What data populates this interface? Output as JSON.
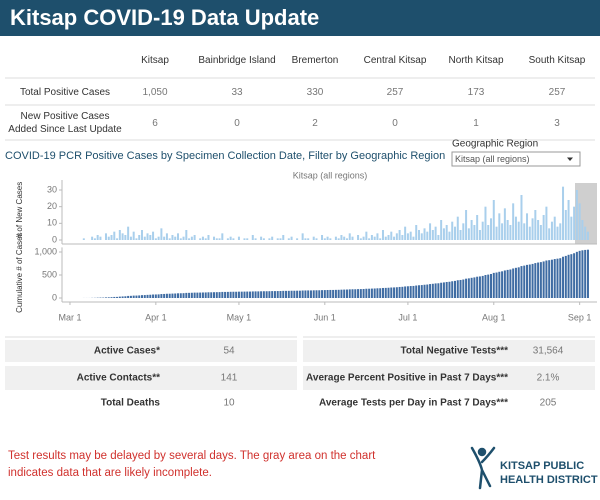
{
  "header": {
    "title": "Kitsap COVID-19 Data Update"
  },
  "table": {
    "columns": [
      "Kitsap",
      "Bainbridge Island",
      "Bremerton",
      "Central Kitsap",
      "North Kitsap",
      "South Kitsap"
    ],
    "rows": [
      {
        "label": "Total Positive Cases",
        "cells": [
          "1,050",
          33,
          330,
          257,
          173,
          257
        ]
      },
      {
        "label": "New Positive Cases Added Since Last Update",
        "cells": [
          6,
          0,
          2,
          0,
          1,
          3
        ]
      }
    ]
  },
  "chart_section": {
    "title": "COVID-19 PCR Positive Cases by Specimen Collection Date, Filter by Geographic Region",
    "filter_label": "Geographic Region",
    "filter_value": "Kitsap (all regions)"
  },
  "chart_data": [
    {
      "type": "bar",
      "title": "Kitsap (all regions)",
      "y_label": "# of New Cases",
      "color": "#a9cfec",
      "ylim": [
        0,
        36
      ],
      "yticks": [
        0,
        10,
        20,
        30
      ],
      "values": [
        0,
        0,
        0,
        0,
        0,
        0,
        1,
        0,
        0,
        2,
        1,
        3,
        2,
        0,
        4,
        2,
        3,
        5,
        1,
        6,
        4,
        3,
        8,
        2,
        5,
        1,
        3,
        6,
        2,
        4,
        3,
        5,
        1,
        2,
        7,
        2,
        4,
        1,
        3,
        2,
        4,
        1,
        2,
        6,
        1,
        2,
        3,
        0,
        1,
        2,
        1,
        3,
        0,
        2,
        1,
        1,
        4,
        0,
        1,
        2,
        1,
        0,
        2,
        0,
        1,
        1,
        0,
        3,
        1,
        0,
        2,
        1,
        0,
        1,
        2,
        0,
        1,
        1,
        3,
        0,
        1,
        2,
        0,
        1,
        0,
        4,
        1,
        1,
        0,
        2,
        1,
        0,
        3,
        1,
        2,
        1,
        0,
        2,
        1,
        3,
        2,
        1,
        4,
        2,
        0,
        3,
        1,
        2,
        5,
        1,
        3,
        2,
        4,
        1,
        6,
        2,
        3,
        5,
        2,
        4,
        6,
        3,
        8,
        4,
        5,
        2,
        9,
        6,
        4,
        7,
        5,
        10,
        6,
        8,
        3,
        12,
        7,
        9,
        5,
        11,
        8,
        14,
        6,
        10,
        18,
        7,
        12,
        9,
        15,
        6,
        11,
        20,
        9,
        13,
        24,
        8,
        16,
        10,
        19,
        12,
        9,
        22,
        14,
        11,
        27,
        10,
        16,
        8,
        13,
        18,
        12,
        9,
        15,
        20,
        7,
        11,
        14,
        8,
        10,
        32,
        18,
        24,
        14,
        20,
        30,
        22,
        12,
        8,
        5
      ]
    },
    {
      "type": "bar",
      "y_label": "Cumulative # of Cases",
      "color": "#3f6ca3",
      "ylim": [
        0,
        1100
      ],
      "yticks": [
        0,
        500,
        {
          "value": 1000,
          "label": "1,000"
        }
      ],
      "categories": [
        null,
        "Mar 1",
        null,
        null,
        null,
        null,
        null,
        null,
        null,
        null,
        null,
        null,
        null,
        null,
        null,
        null,
        null,
        null,
        null,
        null,
        null,
        null,
        null,
        null,
        null,
        null,
        null,
        null,
        null,
        null,
        null,
        null,
        "Apr 1",
        null,
        null,
        null,
        null,
        null,
        null,
        null,
        null,
        null,
        null,
        null,
        null,
        null,
        null,
        null,
        null,
        null,
        null,
        null,
        null,
        null,
        null,
        null,
        null,
        null,
        null,
        null,
        null,
        null,
        "May 1",
        null,
        null,
        null,
        null,
        null,
        null,
        null,
        null,
        null,
        null,
        null,
        null,
        null,
        null,
        null,
        null,
        null,
        null,
        null,
        null,
        null,
        null,
        null,
        null,
        null,
        null,
        null,
        null,
        null,
        null,
        "Jun 1",
        null,
        null,
        null,
        null,
        null,
        null,
        null,
        null,
        null,
        null,
        null,
        null,
        null,
        null,
        null,
        null,
        null,
        null,
        null,
        null,
        null,
        null,
        null,
        null,
        null,
        null,
        null,
        null,
        null,
        "Jul 1",
        null,
        null,
        null,
        null,
        null,
        null,
        null,
        null,
        null,
        null,
        null,
        null,
        null,
        null,
        null,
        null,
        null,
        null,
        null,
        null,
        null,
        null,
        null,
        null,
        null,
        null,
        null,
        null,
        null,
        null,
        "Aug 1",
        null,
        null,
        null,
        null,
        null,
        null,
        null,
        null,
        null,
        null,
        null,
        null,
        null,
        null,
        null,
        null,
        null,
        null,
        null,
        null,
        null,
        null,
        null,
        null,
        null,
        null,
        null,
        null,
        null,
        null,
        "Sep 1",
        null,
        null,
        null
      ],
      "values": [
        0,
        0,
        0,
        0,
        0,
        0,
        1,
        1,
        1,
        3,
        4,
        7,
        9,
        9,
        13,
        15,
        18,
        23,
        24,
        30,
        34,
        37,
        45,
        47,
        52,
        53,
        56,
        62,
        64,
        68,
        71,
        76,
        77,
        79,
        86,
        88,
        92,
        93,
        96,
        98,
        102,
        103,
        105,
        111,
        112,
        114,
        117,
        117,
        118,
        120,
        121,
        124,
        124,
        126,
        127,
        128,
        132,
        132,
        133,
        135,
        136,
        136,
        138,
        138,
        139,
        140,
        140,
        143,
        144,
        144,
        146,
        147,
        147,
        148,
        150,
        150,
        151,
        152,
        155,
        155,
        156,
        158,
        158,
        159,
        159,
        163,
        164,
        165,
        165,
        167,
        168,
        168,
        171,
        172,
        174,
        175,
        175,
        177,
        178,
        181,
        183,
        184,
        188,
        190,
        190,
        193,
        194,
        196,
        201,
        202,
        205,
        207,
        211,
        212,
        218,
        220,
        223,
        228,
        230,
        234,
        240,
        243,
        251,
        255,
        260,
        262,
        271,
        277,
        281,
        288,
        293,
        303,
        309,
        317,
        320,
        332,
        339,
        348,
        353,
        364,
        372,
        386,
        392,
        402,
        420,
        427,
        439,
        448,
        463,
        469,
        480,
        500,
        509,
        522,
        546,
        554,
        570,
        580,
        599,
        611,
        620,
        642,
        656,
        667,
        694,
        704,
        720,
        728,
        741,
        759,
        771,
        780,
        795,
        815,
        822,
        833,
        847,
        855,
        865,
        897,
        915,
        939,
        953,
        973,
        1003,
        1025,
        1037,
        1045,
        1050
      ]
    }
  ],
  "stats": {
    "left": [
      {
        "label": "Active Cases*",
        "value": 54
      },
      {
        "label": "Active Contacts**",
        "value": 141
      },
      {
        "label": "Total Deaths",
        "value": 10
      }
    ],
    "right": [
      {
        "label": "Total Negative Tests***",
        "value": "31,564"
      },
      {
        "label": "Average Percent Positive in Past 7 Days***",
        "value": "2.1%"
      },
      {
        "label": "Average Tests per Day in Past 7 Days***",
        "value": 205
      }
    ]
  },
  "footer": {
    "note": "Test results may be delayed by several days. The gray area on the chart indicates data that are likely incomplete.",
    "logo_line1": "KITSAP PUBLIC",
    "logo_line2": "HEALTH DISTRICT"
  }
}
